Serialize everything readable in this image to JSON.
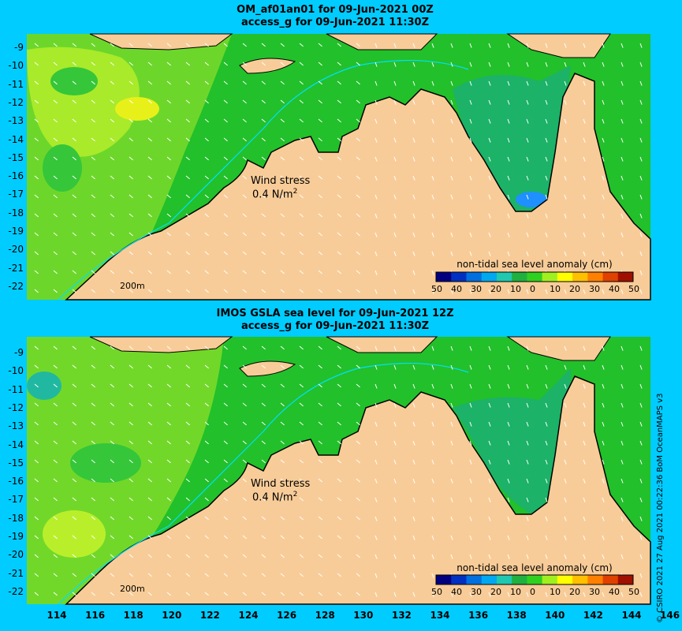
{
  "panels": [
    {
      "title_line1": "OM_af01an01 for 09-Jun-2021 00Z",
      "title_line2": "access_g for 09-Jun-2021 11:30Z",
      "wind_label": "Wind stress",
      "wind_value": "0.4 N/m",
      "wind_exp": "2",
      "depth_label": "200m",
      "colorbar_title": "non-tidal sea level anomaly (cm)",
      "colorbar_ticks": [
        "50",
        "40",
        "30",
        "20",
        "10",
        "0",
        "10",
        "20",
        "30",
        "40",
        "50"
      ],
      "colorbar_colors": [
        "#000080",
        "#0030c0",
        "#0070e0",
        "#00a8f0",
        "#20c8b0",
        "#20b040",
        "#30d020",
        "#a0f020",
        "#ffff00",
        "#ffc000",
        "#ff8000",
        "#e04000",
        "#a01000"
      ]
    },
    {
      "title_line1": "IMOS GSLA sea level  for 09-Jun-2021 12Z",
      "title_line2": "access_g for 09-Jun-2021 11:30Z",
      "wind_label": "Wind stress",
      "wind_value": "0.4 N/m",
      "wind_exp": "2",
      "depth_label": "200m",
      "colorbar_title": "non-tidal sea level anomaly (cm)",
      "colorbar_ticks": [
        "50",
        "40",
        "30",
        "20",
        "10",
        "0",
        "10",
        "20",
        "30",
        "40",
        "50"
      ],
      "colorbar_colors": [
        "#000080",
        "#0030c0",
        "#0070e0",
        "#00a8f0",
        "#20c8b0",
        "#20b040",
        "#30d020",
        "#a0f020",
        "#ffff00",
        "#ffc000",
        "#ff8000",
        "#e04000",
        "#a01000"
      ]
    }
  ],
  "y_axis_labels": [
    "-9",
    "-10",
    "-11",
    "-12",
    "-13",
    "-14",
    "-15",
    "-16",
    "-17",
    "-18",
    "-19",
    "-20",
    "-21",
    "-22"
  ],
  "x_axis_labels": [
    "114",
    "116",
    "118",
    "120",
    "122",
    "124",
    "126",
    "128",
    "130",
    "132",
    "134",
    "136",
    "138",
    "140",
    "142",
    "144",
    "146"
  ],
  "credit": "© CSIRO 2021   27 Aug 2021 00:22:36 BoM OceanMAPS v3",
  "colors": {
    "background": "#00ccff",
    "land": "#f8cc98",
    "ocean_green": "#22c02a",
    "coastline": "#000000",
    "isobath": "#00e0ff"
  }
}
